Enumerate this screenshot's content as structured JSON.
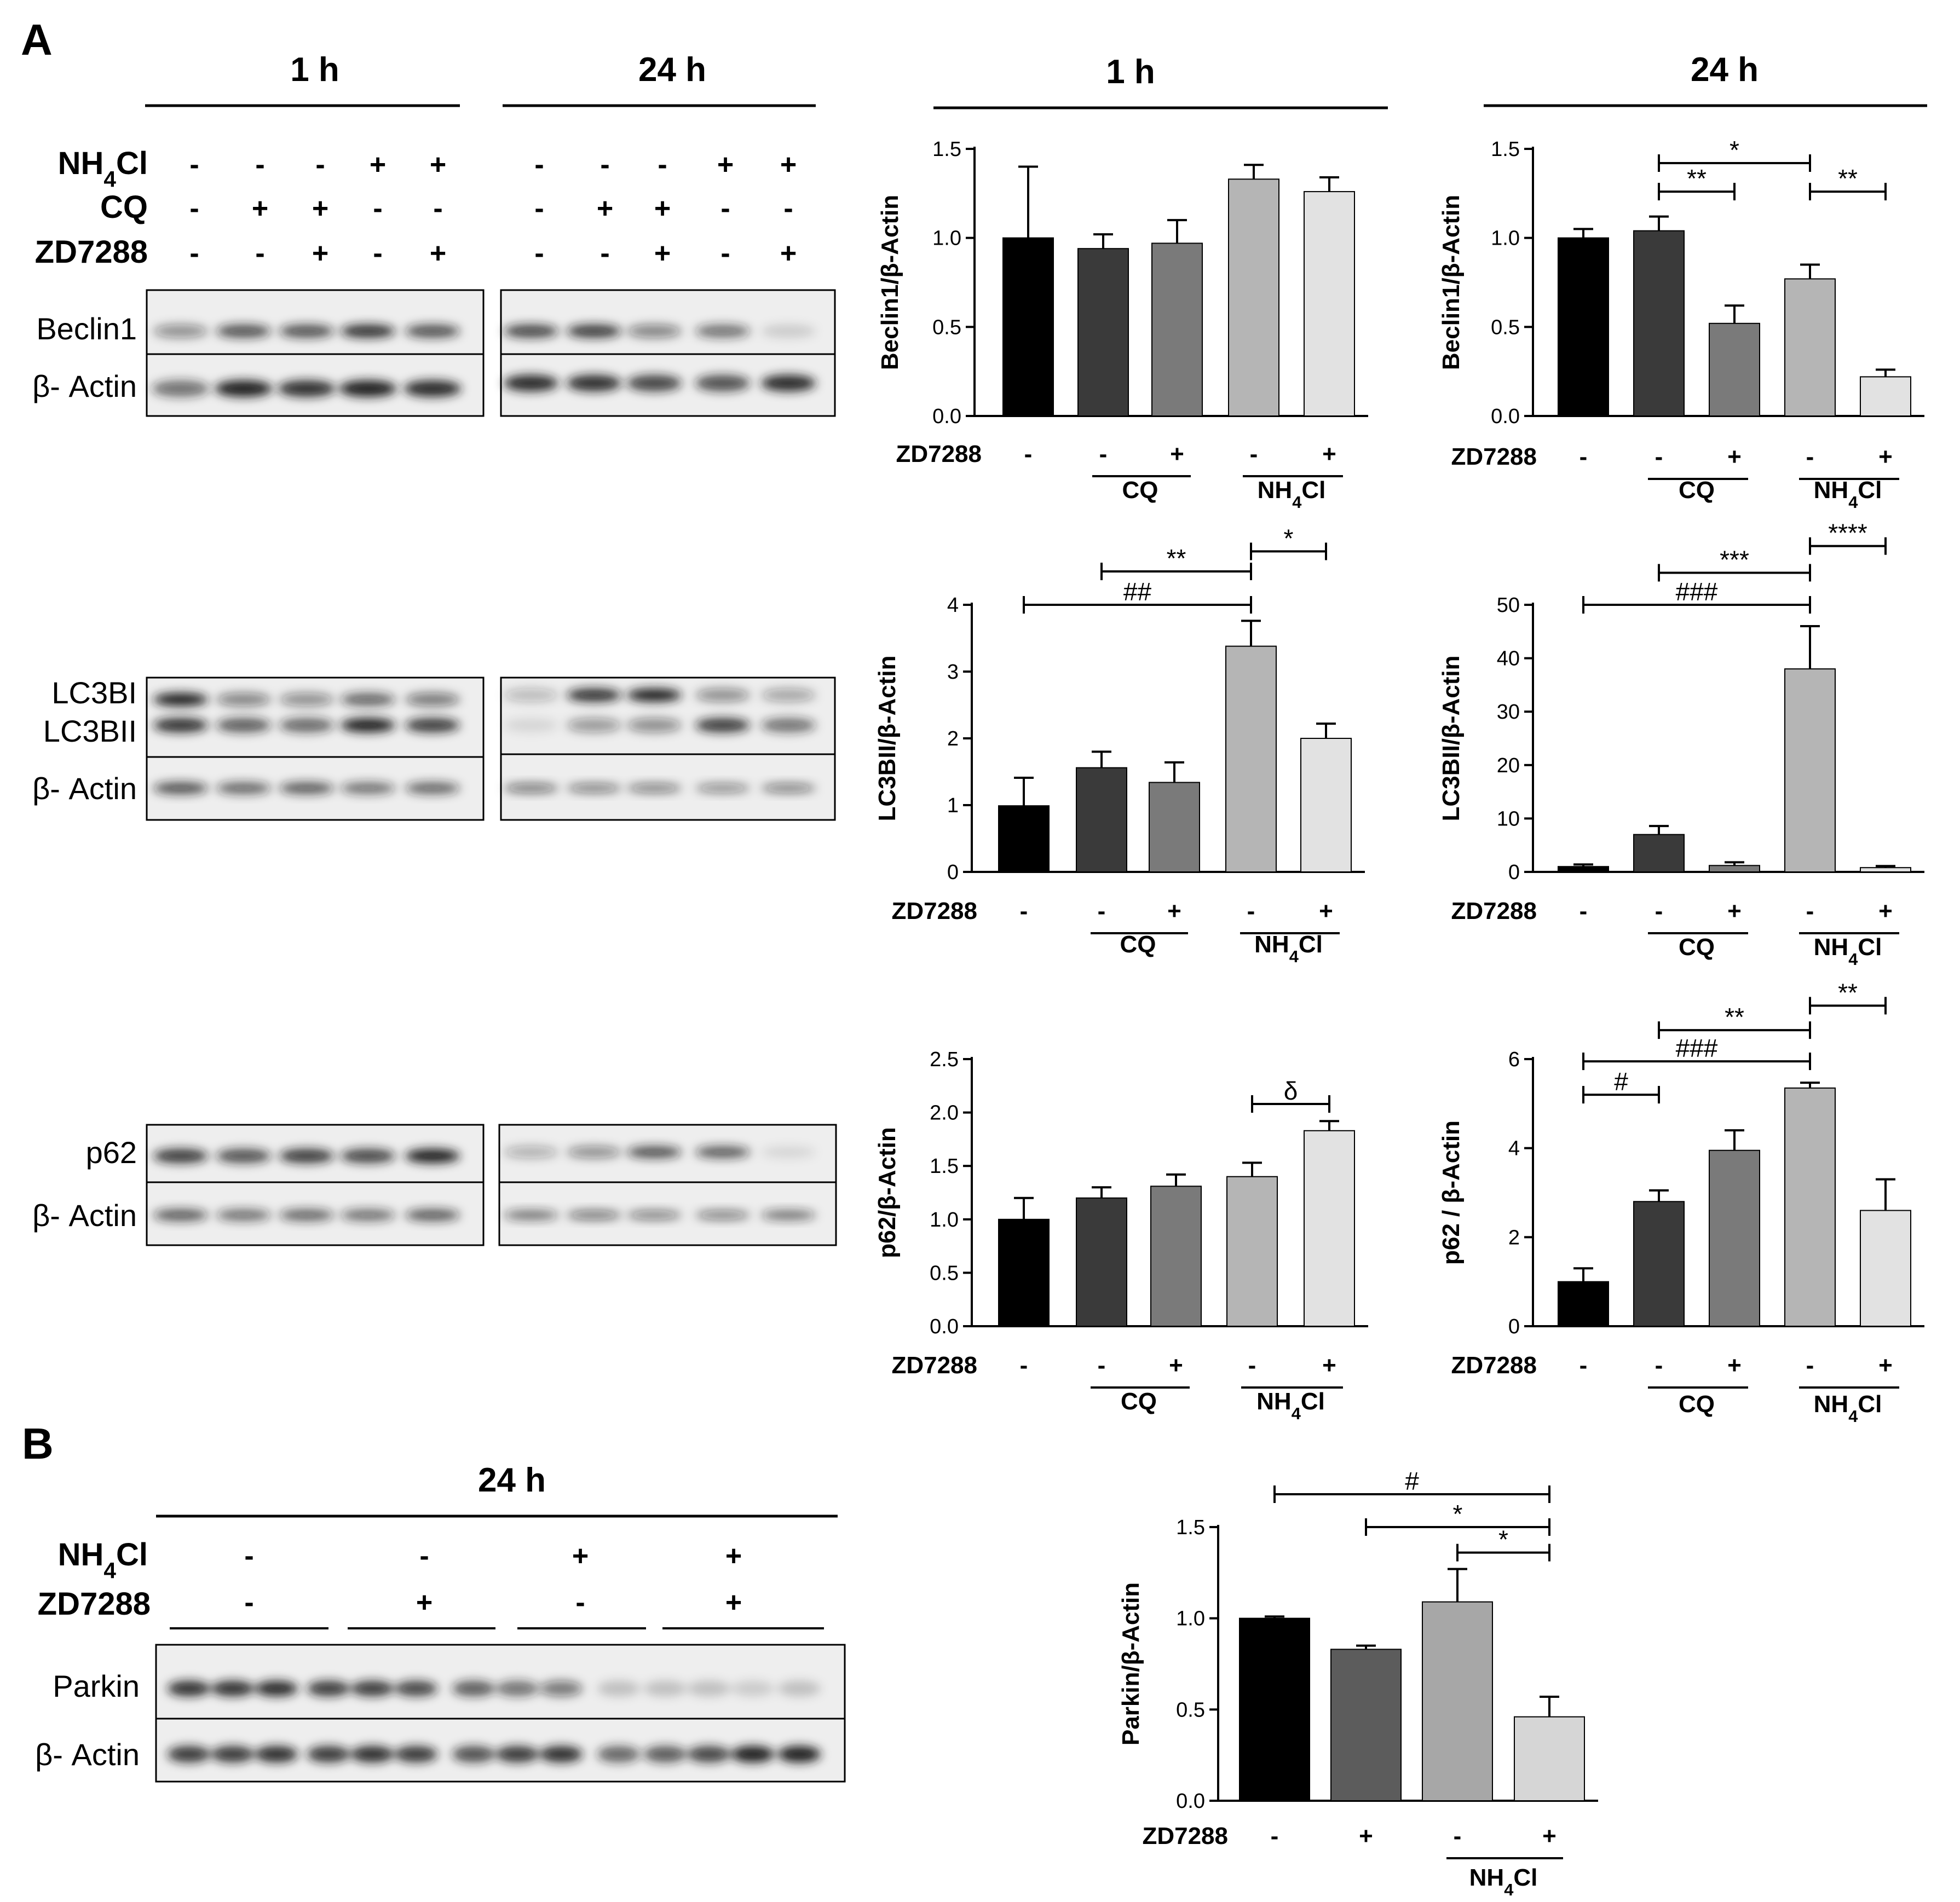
{
  "panels": {
    "a": "A",
    "b": "B"
  },
  "headers": {
    "h1": "1 h",
    "h24": "24 h"
  },
  "colors": {
    "bars": [
      "#000000",
      "#3a3a3a",
      "#7a7a7a",
      "#b5b5b5",
      "#e2e2e2"
    ],
    "parkin_bars": [
      "#000000",
      "#5c5c5c",
      "#a7a7a7",
      "#d6d6d6"
    ],
    "band": "#1a1a1a"
  },
  "blots": {
    "treatments": {
      "nh4cl": {
        "name": "NH",
        "sub": "4",
        "suffix": "Cl"
      },
      "cq": "CQ",
      "zd": "ZD7288"
    },
    "matrix_1h": {
      "nh4cl": [
        "-",
        "-",
        "-",
        "+",
        "+"
      ],
      "cq": [
        "-",
        "+",
        "+",
        "-",
        "-"
      ],
      "zd": [
        "-",
        "-",
        "+",
        "-",
        "+"
      ]
    },
    "matrix_24h": {
      "nh4cl": [
        "-",
        "-",
        "-",
        "+",
        "+"
      ],
      "cq": [
        "-",
        "+",
        "+",
        "-",
        "-"
      ],
      "zd": [
        "-",
        "-",
        "+",
        "-",
        "+"
      ]
    },
    "labels": {
      "beclin1": "Beclin1",
      "actin": "β- Actin",
      "lc3bi": "LC3BI",
      "lc3bii": "LC3BII",
      "p62": "p62",
      "parkin": "Parkin"
    },
    "parkin_matrix": {
      "nh4cl": [
        "-",
        "-",
        "+",
        "+"
      ],
      "zd": [
        "-",
        "+",
        "-",
        "+"
      ]
    }
  },
  "chart_data": [
    {
      "type": "bar",
      "id": "beclin-1h",
      "xlabel": "",
      "ylabel": "Beclin1/β-Actin",
      "ylim": [
        0,
        1.5
      ],
      "yticks": [
        "0.0",
        "0.5",
        "1.0",
        "1.5"
      ],
      "values": [
        1.0,
        0.94,
        0.97,
        1.33,
        1.26
      ],
      "errors": [
        0.4,
        0.08,
        0.13,
        0.08,
        0.08
      ],
      "zd7288": [
        "-",
        "-",
        "+",
        "-",
        "+"
      ],
      "groups": [
        "CQ",
        "NH4Cl"
      ],
      "annotations": []
    },
    {
      "type": "bar",
      "id": "beclin-24h",
      "xlabel": "",
      "ylabel": "Beclin1/β-Actin",
      "ylim": [
        0,
        1.5
      ],
      "yticks": [
        "0.0",
        "0.5",
        "1.0",
        "1.5"
      ],
      "values": [
        1.0,
        1.04,
        0.52,
        0.77,
        0.22
      ],
      "errors": [
        0.05,
        0.08,
        0.1,
        0.08,
        0.04
      ],
      "zd7288": [
        "-",
        "-",
        "+",
        "-",
        "+"
      ],
      "groups": [
        "CQ",
        "NH4Cl"
      ],
      "annotations": [
        {
          "from": 1,
          "to": 3,
          "level": 1.42,
          "text": "*"
        },
        {
          "from": 1,
          "to": 2,
          "level": 1.26,
          "text": "**"
        },
        {
          "from": 3,
          "to": 4,
          "level": 1.26,
          "text": "**"
        }
      ]
    },
    {
      "type": "bar",
      "id": "lc3-1h",
      "xlabel": "",
      "ylabel": "LC3BII/β-Actin",
      "ylim": [
        0,
        4
      ],
      "yticks": [
        "0",
        "1",
        "2",
        "3",
        "4"
      ],
      "values": [
        0.99,
        1.56,
        1.34,
        3.38,
        2.0
      ],
      "errors": [
        0.42,
        0.24,
        0.3,
        0.38,
        0.22
      ],
      "zd7288": [
        "-",
        "-",
        "+",
        "-",
        "+"
      ],
      "groups": [
        "CQ",
        "NH4Cl"
      ],
      "annotations": [
        {
          "from": 3,
          "to": 4,
          "level": 4.8,
          "text": "*"
        },
        {
          "from": 1,
          "to": 3,
          "level": 4.5,
          "text": "**"
        },
        {
          "from": 0,
          "to": 3,
          "level": 4.0,
          "text": "##"
        }
      ]
    },
    {
      "type": "bar",
      "id": "lc3-24h",
      "xlabel": "",
      "ylabel": "LC3BII/β-Actin",
      "ylim": [
        0,
        50
      ],
      "yticks": [
        "0",
        "10",
        "20",
        "30",
        "40",
        "50"
      ],
      "values": [
        1.0,
        7.0,
        1.2,
        38.0,
        0.8
      ],
      "errors": [
        0.4,
        1.6,
        0.6,
        8.0,
        0.3
      ],
      "zd7288": [
        "-",
        "-",
        "+",
        "-",
        "+"
      ],
      "groups": [
        "CQ",
        "NH4Cl"
      ],
      "annotations": [
        {
          "from": 3,
          "to": 4,
          "level": 61,
          "text": "****"
        },
        {
          "from": 1,
          "to": 3,
          "level": 56,
          "text": "***"
        },
        {
          "from": 0,
          "to": 3,
          "level": 50,
          "text": "###"
        }
      ]
    },
    {
      "type": "bar",
      "id": "p62-1h",
      "xlabel": "",
      "ylabel": "p62/β-Actin",
      "ylim": [
        0,
        2.5
      ],
      "yticks": [
        "0.0",
        "0.5",
        "1.0",
        "1.5",
        "2.0",
        "2.5"
      ],
      "values": [
        1.0,
        1.2,
        1.31,
        1.4,
        1.83
      ],
      "errors": [
        0.2,
        0.1,
        0.11,
        0.13,
        0.09
      ],
      "zd7288": [
        "-",
        "-",
        "+",
        "-",
        "+"
      ],
      "groups": [
        "CQ",
        "NH4Cl"
      ],
      "annotations": [
        {
          "from": 3,
          "to": 4,
          "level": 2.08,
          "text": "δ"
        }
      ]
    },
    {
      "type": "bar",
      "id": "p62-24h",
      "xlabel": "",
      "ylabel": "p62 / β-Actin",
      "ylim": [
        0,
        6
      ],
      "yticks": [
        "0",
        "2",
        "4",
        "6"
      ],
      "values": [
        1.0,
        2.8,
        3.95,
        5.35,
        2.6
      ],
      "errors": [
        0.3,
        0.25,
        0.45,
        0.12,
        0.7
      ],
      "zd7288": [
        "-",
        "-",
        "+",
        "-",
        "+"
      ],
      "groups": [
        "CQ",
        "NH4Cl"
      ],
      "annotations": [
        {
          "from": 3,
          "to": 4,
          "level": 7.2,
          "text": "**"
        },
        {
          "from": 1,
          "to": 3,
          "level": 6.65,
          "text": "**"
        },
        {
          "from": 0,
          "to": 3,
          "level": 5.95,
          "text": "###"
        },
        {
          "from": 0,
          "to": 1,
          "level": 5.2,
          "text": "#"
        }
      ]
    },
    {
      "type": "bar",
      "id": "parkin-24h",
      "xlabel": "",
      "ylabel": "Parkin/β-Actin",
      "ylim": [
        0,
        1.5
      ],
      "yticks": [
        "0.0",
        "0.5",
        "1.0",
        "1.5"
      ],
      "values": [
        1.0,
        0.83,
        1.09,
        0.46
      ],
      "errors": [
        0.01,
        0.02,
        0.18,
        0.11
      ],
      "zd7288": [
        "-",
        "+",
        "-",
        "+"
      ],
      "groups": [
        "NH4Cl"
      ],
      "annotations": [
        {
          "from": 0,
          "to": 3,
          "level": 1.68,
          "text": "#"
        },
        {
          "from": 1,
          "to": 3,
          "level": 1.5,
          "text": "*"
        },
        {
          "from": 2,
          "to": 3,
          "level": 1.36,
          "text": "*"
        }
      ]
    }
  ]
}
